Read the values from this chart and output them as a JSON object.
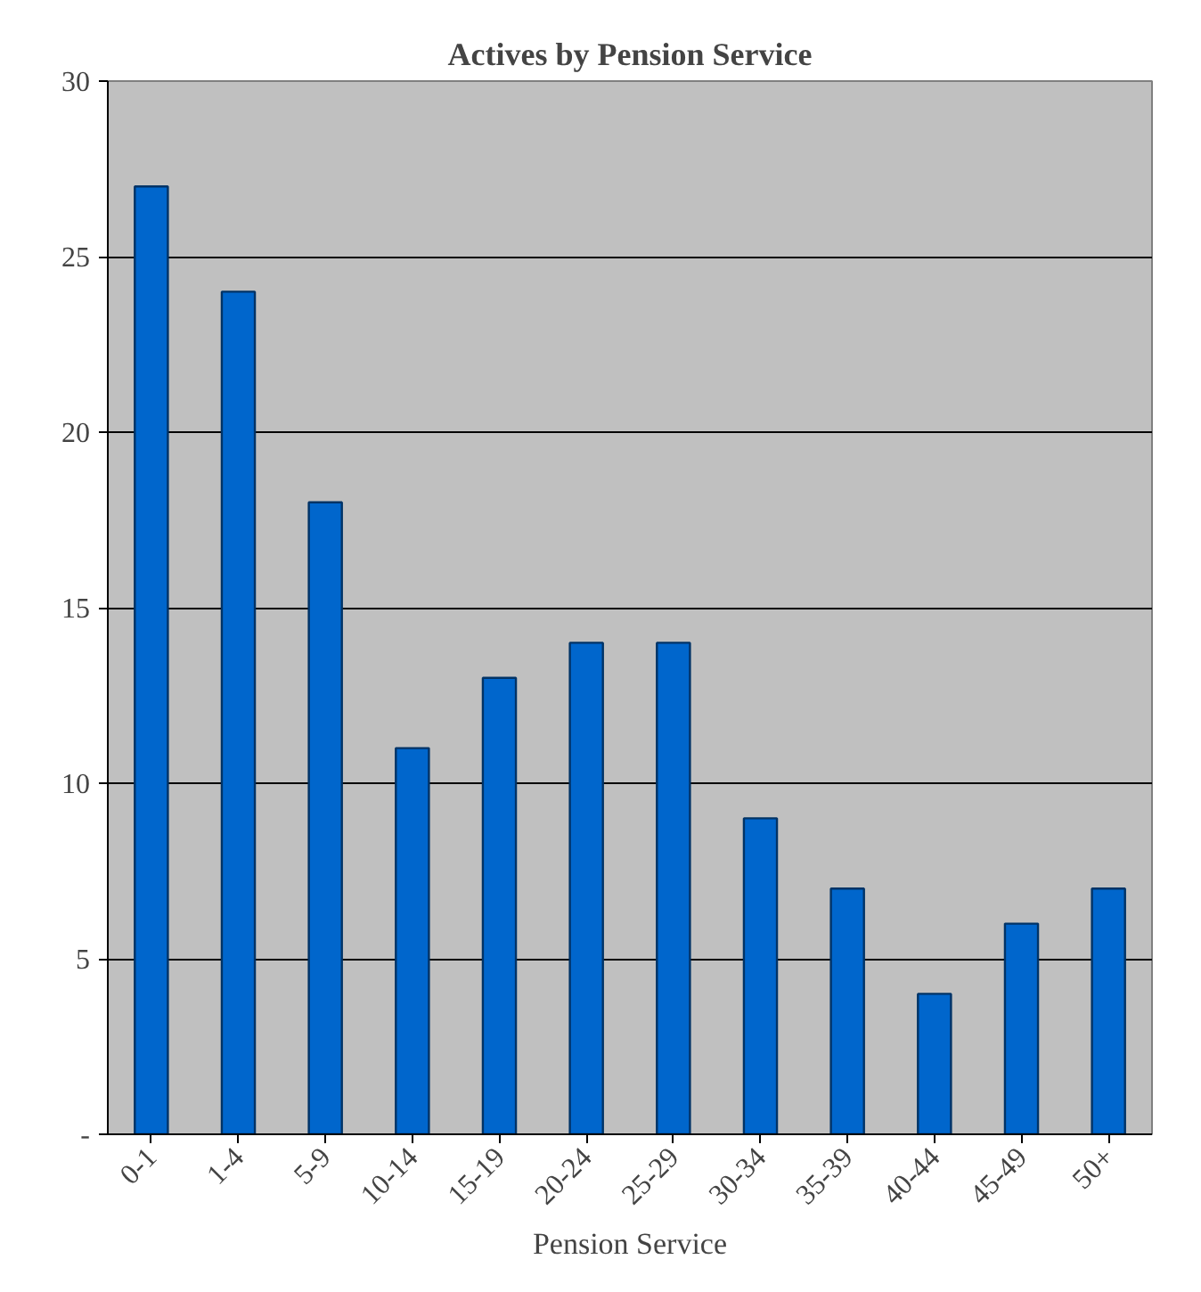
{
  "chart_data": {
    "type": "bar",
    "title": "Actives by Pension Service",
    "xlabel": "Pension Service",
    "categories": [
      "0-1",
      "1-4",
      "5-9",
      "10-14",
      "15-19",
      "20-24",
      "25-29",
      "30-34",
      "35-39",
      "40-44",
      "45-49",
      "50+"
    ],
    "values": [
      27,
      24,
      18,
      11,
      13,
      14,
      14,
      9,
      7,
      4,
      6,
      7
    ],
    "color": "#0066cc",
    "ylim": [
      0,
      30
    ],
    "yticks": [
      {
        "value": 0,
        "label": "-"
      },
      5,
      10,
      15,
      20,
      25,
      30
    ],
    "grid": "y"
  }
}
